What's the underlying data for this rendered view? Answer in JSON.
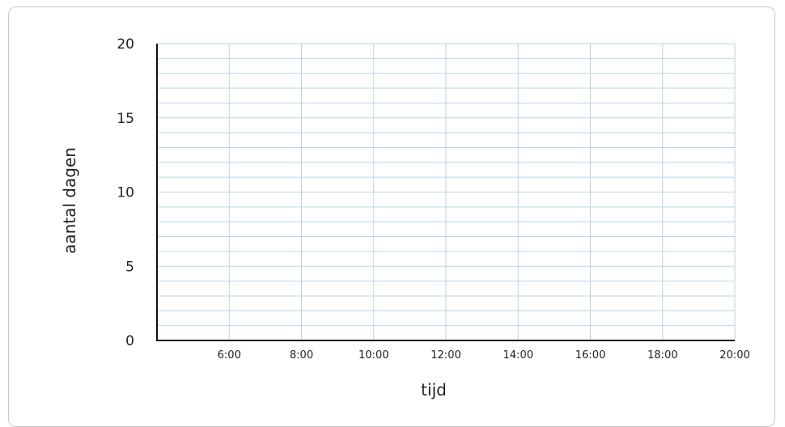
{
  "chart_data": {
    "type": "line",
    "title": "",
    "xlabel": "tijd",
    "ylabel": "aantal dagen",
    "x_ticks": [
      "6:00",
      "8:00",
      "10:00",
      "12:00",
      "14:00",
      "16:00",
      "18:00",
      "20:00"
    ],
    "xlim": [
      "4:00",
      "20:00"
    ],
    "y_ticks": [
      0,
      5,
      10,
      15,
      20
    ],
    "ylim": [
      0,
      20
    ],
    "y_minor_step": 1,
    "grid": true,
    "series": []
  },
  "colors": {
    "grid": "#b9d7e6",
    "axis": "#111111",
    "card_border": "#c9c9c9"
  }
}
